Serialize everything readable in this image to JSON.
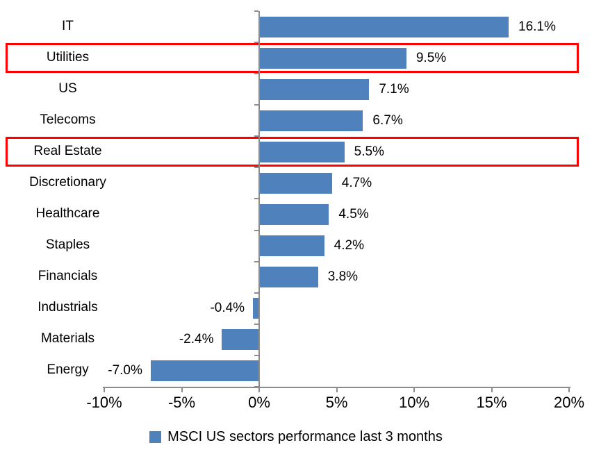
{
  "chart_data": {
    "type": "bar",
    "orientation": "horizontal",
    "categories": [
      "IT",
      "Utilities",
      "US",
      "Telecoms",
      "Real Estate",
      "Discretionary",
      "Healthcare",
      "Staples",
      "Financials",
      "Industrials",
      "Materials",
      "Energy"
    ],
    "values": [
      16.1,
      9.5,
      7.1,
      6.7,
      5.5,
      4.7,
      4.5,
      4.2,
      3.8,
      -0.4,
      -2.4,
      -7.0
    ],
    "value_labels": [
      "16.1%",
      "9.5%",
      "7.1%",
      "6.7%",
      "5.5%",
      "4.7%",
      "4.5%",
      "4.2%",
      "3.8%",
      "-0.4%",
      "-2.4%",
      "-7.0%"
    ],
    "highlighted_categories": [
      "Utilities",
      "Real Estate"
    ],
    "x_axis": {
      "min": -10,
      "max": 20,
      "ticks": [
        -10,
        -5,
        0,
        5,
        10,
        15,
        20
      ],
      "tick_labels": [
        "-10%",
        "-5%",
        "0%",
        "5%",
        "10%",
        "15%",
        "20%"
      ]
    },
    "legend": {
      "label": "MSCI US sectors performance last 3 months",
      "marker": "square",
      "position": "bottom"
    },
    "grid": false,
    "colors": {
      "bar": "#4F81BD",
      "highlight_border": "#FF0000",
      "axis": "#8C8C8C",
      "text": "#000000",
      "background": "#FFFFFF"
    }
  }
}
